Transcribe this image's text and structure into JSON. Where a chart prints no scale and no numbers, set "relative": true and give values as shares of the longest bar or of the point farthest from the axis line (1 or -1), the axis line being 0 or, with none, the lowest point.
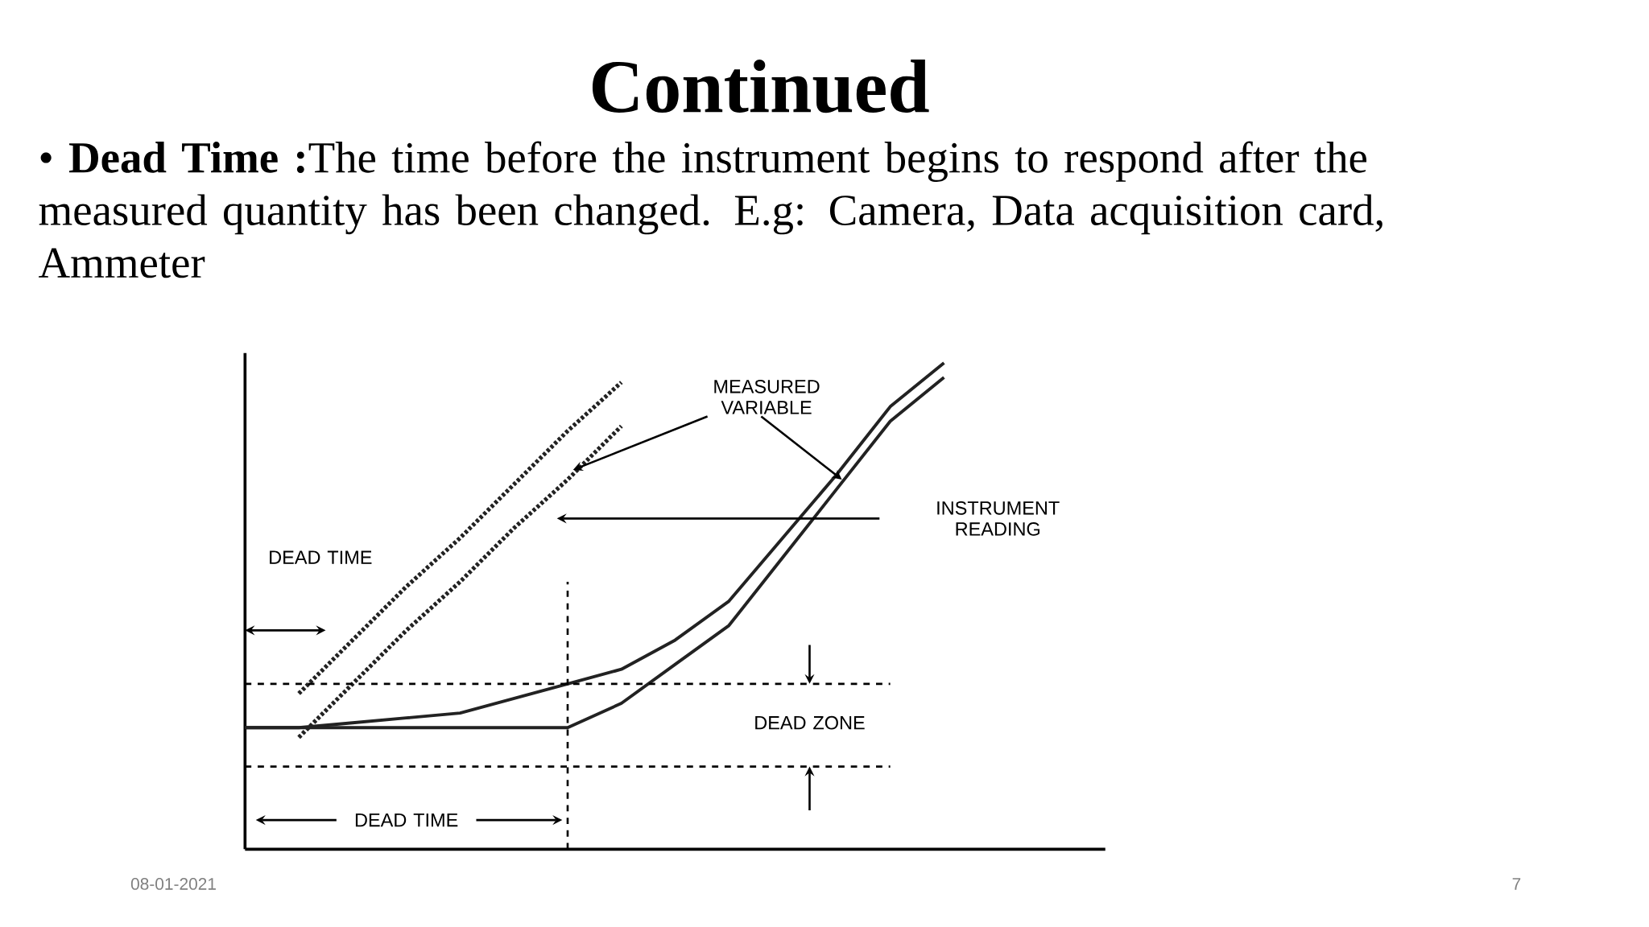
{
  "chart_data": {
    "type": "line",
    "relative": true,
    "title": "Continued",
    "subtitle": "• **Dead Time :**The time before the instrument begins to respond after the measured  quantity has been changed. E.g: Camera, Data acquisition card, Ammeter",
    "categories": [
      null,
      null,
      null,
      null,
      null,
      null,
      null,
      null,
      null,
      null,
      null,
      null,
      null,
      null,
      null,
      null,
      null
    ],
    "series": [
      {
        "color": "#222222",
        "line_style": "dotted",
        "values": [
          null,
          0.32,
          0.43,
          0.54,
          0.64,
          0.75,
          0.86,
          0.96,
          null,
          null,
          null,
          null,
          null,
          null,
          null,
          null,
          null
        ]
      },
      {
        "color": "#222222",
        "line_style": "dotted",
        "values": [
          null,
          0.23,
          0.34,
          0.45,
          0.55,
          0.66,
          0.76,
          0.87,
          null,
          null,
          null,
          null,
          null,
          null,
          null,
          null,
          null
        ]
      },
      {
        "color": "#222222",
        "line_style": "solid",
        "values": [
          0.25,
          0.25,
          0.26,
          0.27,
          0.28,
          0.31,
          0.34,
          0.37,
          0.43,
          0.51,
          0.64,
          0.77,
          0.91,
          1.0,
          null,
          null,
          null
        ]
      },
      {
        "color": "#222222",
        "line_style": "solid",
        "values": [
          0.25,
          0.25,
          0.25,
          0.25,
          0.25,
          0.25,
          0.25,
          0.3,
          0.38,
          0.46,
          0.6,
          0.74,
          0.88,
          0.97,
          null,
          null,
          null
        ]
      }
    ],
    "ref_lines": [
      {
        "axis": "y",
        "value": 0.34,
        "line_style": "dashed"
      },
      {
        "axis": "y",
        "value": 0.17,
        "line_style": "dashed"
      }
    ],
    "annotations": [
      "MEASURED VARIABLE",
      "INSTRUMENT READING",
      "DEAD TIME",
      "DEAD ZONE",
      "DEAD TIME",
      "08-01-2021",
      "7"
    ],
    "marker": "none"
  }
}
